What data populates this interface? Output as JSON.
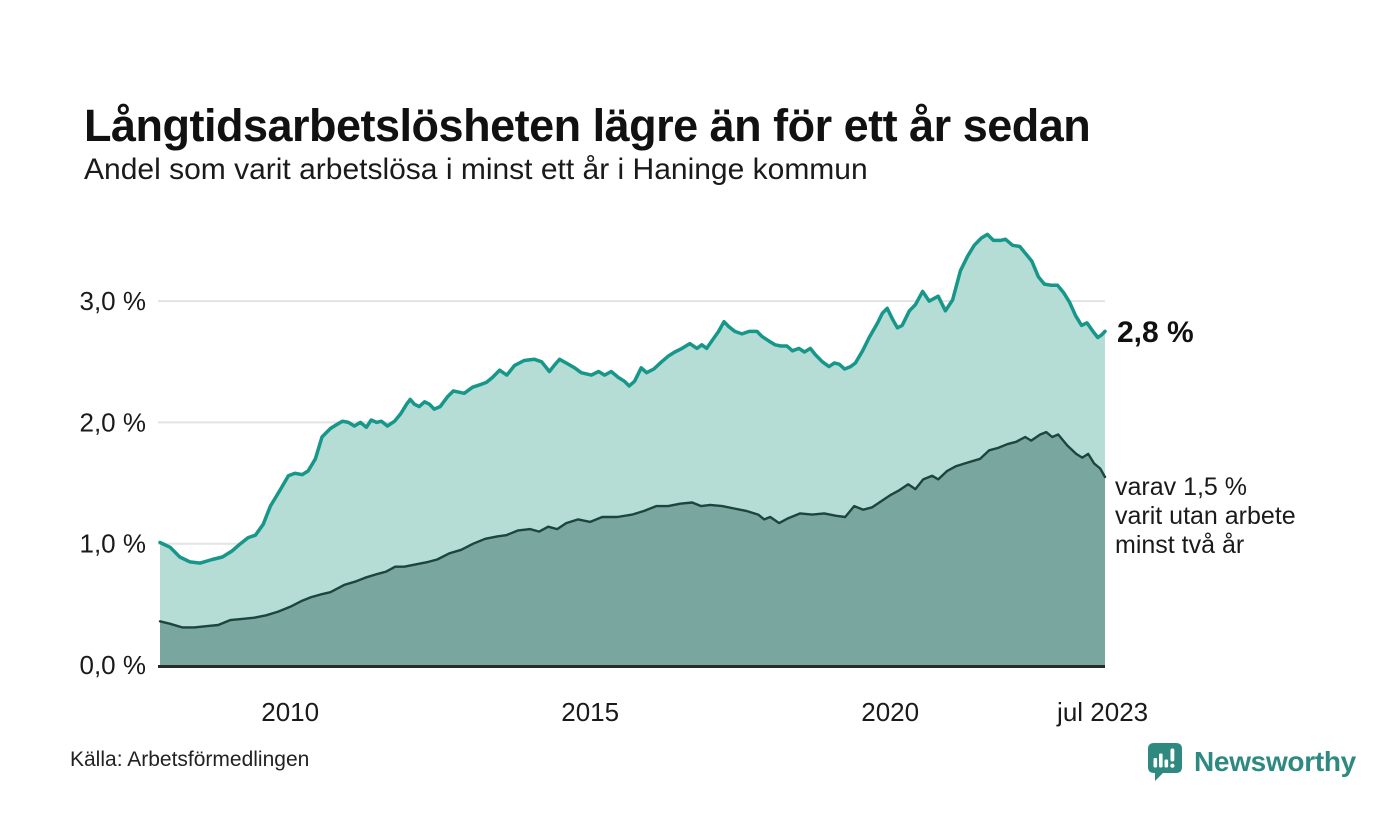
{
  "chart_data": {
    "type": "area",
    "title": "Långtidsarbetslösheten lägre än för ett år sedan",
    "subtitle": "Andel som varit arbetslösa i minst ett år i Haninge kommun",
    "source": "Källa: Arbetsförmedlingen",
    "brand": "Newsworthy",
    "brand_color": "#2e8a80",
    "grid": "horizontal gridlines at 1%, 2%, 3%; dark baseline at 0%",
    "legend_position": "none (direct end-of-line labels)",
    "xlim": [
      2007.83,
      2023.58
    ],
    "ylim": [
      0,
      3.59
    ],
    "x_ticks": [
      {
        "label": "2010",
        "t": 2010.0
      },
      {
        "label": "2015",
        "t": 2015.0
      },
      {
        "label": "2020",
        "t": 2020.0
      },
      {
        "label": "jul 2023",
        "t": 2023.54
      }
    ],
    "y_ticks": [
      {
        "label": "0,0 %",
        "v": 0.0
      },
      {
        "label": "1,0 %",
        "v": 1.0
      },
      {
        "label": "2,0 %",
        "v": 2.0
      },
      {
        "label": "3,0 %",
        "v": 3.0
      }
    ],
    "end_value_label": "2,8 %",
    "end_note_lines": [
      "varav 1,5 %",
      "varit utan arbete",
      "minst två år"
    ],
    "series": [
      {
        "name": "Andel arbetslösa minst ett år",
        "color": "#17968a",
        "fill": "#b5dcd5",
        "line_width": 3.5,
        "points": [
          [
            2007.83,
            1.01
          ],
          [
            2008.0,
            0.97
          ],
          [
            2008.16,
            0.89
          ],
          [
            2008.33,
            0.85
          ],
          [
            2008.5,
            0.84
          ],
          [
            2008.7,
            0.87
          ],
          [
            2008.87,
            0.89
          ],
          [
            2009.03,
            0.94
          ],
          [
            2009.17,
            1.0
          ],
          [
            2009.3,
            1.05
          ],
          [
            2009.42,
            1.07
          ],
          [
            2009.55,
            1.16
          ],
          [
            2009.67,
            1.31
          ],
          [
            2009.84,
            1.45
          ],
          [
            2009.97,
            1.56
          ],
          [
            2010.08,
            1.58
          ],
          [
            2010.2,
            1.57
          ],
          [
            2010.3,
            1.6
          ],
          [
            2010.42,
            1.7
          ],
          [
            2010.53,
            1.88
          ],
          [
            2010.67,
            1.95
          ],
          [
            2010.77,
            1.98
          ],
          [
            2010.87,
            2.01
          ],
          [
            2010.97,
            2.0
          ],
          [
            2011.07,
            1.97
          ],
          [
            2011.17,
            2.0
          ],
          [
            2011.27,
            1.96
          ],
          [
            2011.35,
            2.02
          ],
          [
            2011.44,
            2.0
          ],
          [
            2011.52,
            2.01
          ],
          [
            2011.62,
            1.97
          ],
          [
            2011.74,
            2.01
          ],
          [
            2011.84,
            2.07
          ],
          [
            2011.94,
            2.15
          ],
          [
            2012.0,
            2.19
          ],
          [
            2012.07,
            2.15
          ],
          [
            2012.15,
            2.13
          ],
          [
            2012.24,
            2.17
          ],
          [
            2012.32,
            2.15
          ],
          [
            2012.4,
            2.11
          ],
          [
            2012.5,
            2.13
          ],
          [
            2012.62,
            2.21
          ],
          [
            2012.72,
            2.26
          ],
          [
            2012.9,
            2.24
          ],
          [
            2013.04,
            2.29
          ],
          [
            2013.16,
            2.31
          ],
          [
            2013.27,
            2.33
          ],
          [
            2013.37,
            2.37
          ],
          [
            2013.49,
            2.43
          ],
          [
            2013.61,
            2.39
          ],
          [
            2013.74,
            2.47
          ],
          [
            2013.9,
            2.51
          ],
          [
            2014.07,
            2.52
          ],
          [
            2014.19,
            2.5
          ],
          [
            2014.32,
            2.42
          ],
          [
            2014.4,
            2.47
          ],
          [
            2014.49,
            2.52
          ],
          [
            2014.6,
            2.49
          ],
          [
            2014.74,
            2.45
          ],
          [
            2014.85,
            2.41
          ],
          [
            2015.02,
            2.39
          ],
          [
            2015.14,
            2.42
          ],
          [
            2015.24,
            2.39
          ],
          [
            2015.35,
            2.42
          ],
          [
            2015.47,
            2.37
          ],
          [
            2015.57,
            2.34
          ],
          [
            2015.65,
            2.3
          ],
          [
            2015.74,
            2.34
          ],
          [
            2015.85,
            2.45
          ],
          [
            2015.94,
            2.41
          ],
          [
            2016.06,
            2.44
          ],
          [
            2016.19,
            2.5
          ],
          [
            2016.31,
            2.55
          ],
          [
            2016.41,
            2.58
          ],
          [
            2016.53,
            2.61
          ],
          [
            2016.66,
            2.65
          ],
          [
            2016.78,
            2.61
          ],
          [
            2016.86,
            2.64
          ],
          [
            2016.94,
            2.61
          ],
          [
            2017.04,
            2.68
          ],
          [
            2017.14,
            2.75
          ],
          [
            2017.23,
            2.83
          ],
          [
            2017.31,
            2.79
          ],
          [
            2017.41,
            2.75
          ],
          [
            2017.53,
            2.73
          ],
          [
            2017.65,
            2.75
          ],
          [
            2017.78,
            2.75
          ],
          [
            2017.86,
            2.71
          ],
          [
            2017.98,
            2.67
          ],
          [
            2018.08,
            2.64
          ],
          [
            2018.18,
            2.63
          ],
          [
            2018.28,
            2.63
          ],
          [
            2018.37,
            2.59
          ],
          [
            2018.48,
            2.61
          ],
          [
            2018.57,
            2.58
          ],
          [
            2018.67,
            2.61
          ],
          [
            2018.75,
            2.56
          ],
          [
            2018.87,
            2.5
          ],
          [
            2018.98,
            2.46
          ],
          [
            2019.07,
            2.49
          ],
          [
            2019.15,
            2.48
          ],
          [
            2019.24,
            2.44
          ],
          [
            2019.34,
            2.46
          ],
          [
            2019.42,
            2.49
          ],
          [
            2019.54,
            2.59
          ],
          [
            2019.65,
            2.7
          ],
          [
            2019.79,
            2.82
          ],
          [
            2019.87,
            2.9
          ],
          [
            2019.95,
            2.94
          ],
          [
            2020.04,
            2.85
          ],
          [
            2020.12,
            2.78
          ],
          [
            2020.2,
            2.8
          ],
          [
            2020.32,
            2.92
          ],
          [
            2020.42,
            2.97
          ],
          [
            2020.54,
            3.08
          ],
          [
            2020.65,
            3.0
          ],
          [
            2020.8,
            3.04
          ],
          [
            2020.92,
            2.92
          ],
          [
            2021.04,
            3.01
          ],
          [
            2021.17,
            3.25
          ],
          [
            2021.29,
            3.37
          ],
          [
            2021.4,
            3.46
          ],
          [
            2021.52,
            3.52
          ],
          [
            2021.62,
            3.55
          ],
          [
            2021.72,
            3.5
          ],
          [
            2021.84,
            3.5
          ],
          [
            2021.92,
            3.51
          ],
          [
            2022.04,
            3.46
          ],
          [
            2022.16,
            3.45
          ],
          [
            2022.26,
            3.39
          ],
          [
            2022.36,
            3.33
          ],
          [
            2022.47,
            3.2
          ],
          [
            2022.57,
            3.14
          ],
          [
            2022.69,
            3.13
          ],
          [
            2022.79,
            3.13
          ],
          [
            2022.89,
            3.07
          ],
          [
            2022.99,
            2.99
          ],
          [
            2023.09,
            2.88
          ],
          [
            2023.19,
            2.8
          ],
          [
            2023.28,
            2.82
          ],
          [
            2023.38,
            2.75
          ],
          [
            2023.46,
            2.7
          ],
          [
            2023.52,
            2.72
          ],
          [
            2023.58,
            2.75
          ]
        ]
      },
      {
        "name": "varav utan arbete minst två år",
        "color": "#1d4540",
        "fill": "#79a7a0",
        "line_width": 2.4,
        "points": [
          [
            2007.83,
            0.36
          ],
          [
            2008.0,
            0.34
          ],
          [
            2008.2,
            0.31
          ],
          [
            2008.4,
            0.31
          ],
          [
            2008.6,
            0.32
          ],
          [
            2008.8,
            0.33
          ],
          [
            2009.0,
            0.37
          ],
          [
            2009.2,
            0.38
          ],
          [
            2009.4,
            0.39
          ],
          [
            2009.6,
            0.41
          ],
          [
            2009.8,
            0.44
          ],
          [
            2010.0,
            0.48
          ],
          [
            2010.2,
            0.53
          ],
          [
            2010.35,
            0.56
          ],
          [
            2010.5,
            0.58
          ],
          [
            2010.67,
            0.6
          ],
          [
            2010.9,
            0.66
          ],
          [
            2011.1,
            0.69
          ],
          [
            2011.25,
            0.72
          ],
          [
            2011.45,
            0.75
          ],
          [
            2011.6,
            0.77
          ],
          [
            2011.75,
            0.81
          ],
          [
            2011.9,
            0.81
          ],
          [
            2012.1,
            0.83
          ],
          [
            2012.3,
            0.85
          ],
          [
            2012.45,
            0.87
          ],
          [
            2012.65,
            0.92
          ],
          [
            2012.85,
            0.95
          ],
          [
            2013.05,
            1.0
          ],
          [
            2013.25,
            1.04
          ],
          [
            2013.45,
            1.06
          ],
          [
            2013.6,
            1.07
          ],
          [
            2013.8,
            1.11
          ],
          [
            2014.0,
            1.12
          ],
          [
            2014.15,
            1.1
          ],
          [
            2014.3,
            1.14
          ],
          [
            2014.45,
            1.12
          ],
          [
            2014.6,
            1.17
          ],
          [
            2014.8,
            1.2
          ],
          [
            2015.0,
            1.18
          ],
          [
            2015.2,
            1.22
          ],
          [
            2015.45,
            1.22
          ],
          [
            2015.7,
            1.24
          ],
          [
            2015.9,
            1.27
          ],
          [
            2016.1,
            1.31
          ],
          [
            2016.3,
            1.31
          ],
          [
            2016.5,
            1.33
          ],
          [
            2016.7,
            1.34
          ],
          [
            2016.85,
            1.31
          ],
          [
            2017.0,
            1.32
          ],
          [
            2017.2,
            1.31
          ],
          [
            2017.4,
            1.29
          ],
          [
            2017.6,
            1.27
          ],
          [
            2017.8,
            1.24
          ],
          [
            2017.9,
            1.2
          ],
          [
            2018.0,
            1.22
          ],
          [
            2018.15,
            1.17
          ],
          [
            2018.3,
            1.21
          ],
          [
            2018.5,
            1.25
          ],
          [
            2018.7,
            1.24
          ],
          [
            2018.9,
            1.25
          ],
          [
            2019.1,
            1.23
          ],
          [
            2019.25,
            1.22
          ],
          [
            2019.4,
            1.31
          ],
          [
            2019.55,
            1.28
          ],
          [
            2019.7,
            1.3
          ],
          [
            2019.85,
            1.35
          ],
          [
            2020.0,
            1.4
          ],
          [
            2020.15,
            1.44
          ],
          [
            2020.3,
            1.49
          ],
          [
            2020.42,
            1.45
          ],
          [
            2020.55,
            1.53
          ],
          [
            2020.7,
            1.56
          ],
          [
            2020.8,
            1.53
          ],
          [
            2020.95,
            1.6
          ],
          [
            2021.1,
            1.64
          ],
          [
            2021.3,
            1.67
          ],
          [
            2021.5,
            1.7
          ],
          [
            2021.65,
            1.77
          ],
          [
            2021.8,
            1.79
          ],
          [
            2021.95,
            1.82
          ],
          [
            2022.1,
            1.84
          ],
          [
            2022.25,
            1.88
          ],
          [
            2022.35,
            1.85
          ],
          [
            2022.5,
            1.9
          ],
          [
            2022.6,
            1.92
          ],
          [
            2022.7,
            1.88
          ],
          [
            2022.8,
            1.9
          ],
          [
            2022.95,
            1.81
          ],
          [
            2023.1,
            1.74
          ],
          [
            2023.2,
            1.71
          ],
          [
            2023.3,
            1.74
          ],
          [
            2023.4,
            1.66
          ],
          [
            2023.5,
            1.62
          ],
          [
            2023.58,
            1.55
          ]
        ]
      }
    ]
  }
}
